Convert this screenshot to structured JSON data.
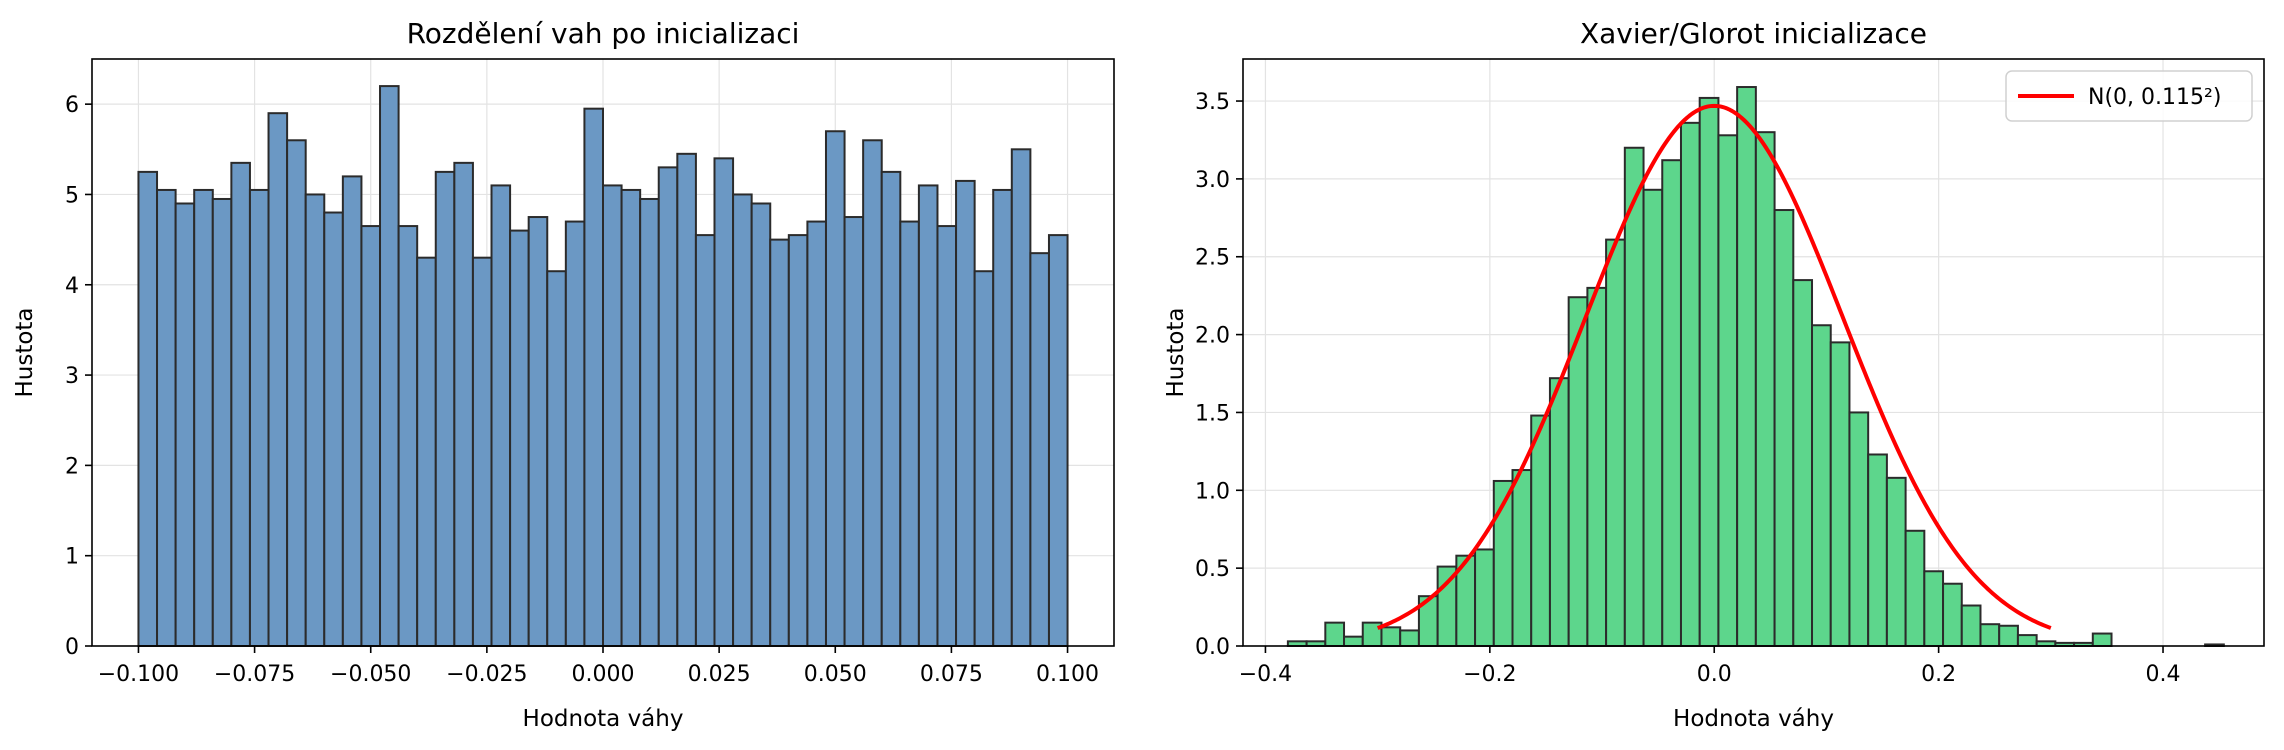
{
  "chart_data": [
    {
      "type": "bar",
      "title": "Rozdělení vah po inicializaci",
      "xlabel": "Hodnota váhy",
      "ylabel": "Hustota",
      "xlim": [
        -0.11,
        0.11
      ],
      "ylim": [
        0,
        6.5
      ],
      "grid": true,
      "bar_color": "#6b98c4",
      "edge_color": "#2b2b2b",
      "bin_range": [
        -0.1,
        0.1
      ],
      "values": [
        5.25,
        5.05,
        4.9,
        5.05,
        4.95,
        5.35,
        5.05,
        5.9,
        5.6,
        5.0,
        4.8,
        5.2,
        4.65,
        6.2,
        4.65,
        4.3,
        5.25,
        5.35,
        4.3,
        5.1,
        4.6,
        4.75,
        4.15,
        4.7,
        5.95,
        5.1,
        5.05,
        4.95,
        5.3,
        5.45,
        4.55,
        5.4,
        5.0,
        4.9,
        4.5,
        4.55,
        4.7,
        5.7,
        4.75,
        5.6,
        5.25,
        4.7,
        5.1,
        4.65,
        5.15,
        4.15,
        5.05,
        5.5,
        4.35,
        4.55
      ],
      "xticks": [
        "−0.100",
        "−0.075",
        "−0.050",
        "−0.025",
        "0.000",
        "0.025",
        "0.050",
        "0.075",
        "0.100"
      ],
      "xtick_values": [
        -0.1,
        -0.075,
        -0.05,
        -0.025,
        0.0,
        0.025,
        0.05,
        0.075,
        0.1
      ],
      "yticks": [
        "0",
        "1",
        "2",
        "3",
        "4",
        "5",
        "6"
      ],
      "ytick_values": [
        0,
        1,
        2,
        3,
        4,
        5,
        6
      ]
    },
    {
      "type": "bar",
      "title": "Xavier/Glorot inicializace",
      "xlabel": "Hodnota váhy",
      "ylabel": "Hustota",
      "xlim": [
        -0.42,
        0.49
      ],
      "ylim": [
        0,
        3.77
      ],
      "grid": true,
      "bar_color": "#5dd68c",
      "edge_color": "#2b2b2b",
      "bin_range": [
        -0.38,
        0.4542
      ],
      "values": [
        0.03,
        0.03,
        0.15,
        0.06,
        0.15,
        0.12,
        0.1,
        0.32,
        0.51,
        0.58,
        0.62,
        1.06,
        1.13,
        1.48,
        1.72,
        2.24,
        2.3,
        2.61,
        3.2,
        2.93,
        3.12,
        3.36,
        3.52,
        3.28,
        3.59,
        3.3,
        2.8,
        2.35,
        2.06,
        1.95,
        1.5,
        1.23,
        1.08,
        0.74,
        0.48,
        0.4,
        0.26,
        0.14,
        0.13,
        0.07,
        0.03,
        0.02,
        0.02,
        0.08,
        0,
        0,
        0,
        0,
        0,
        0.01
      ],
      "curve": {
        "name": "N(0, 0.115²)",
        "color": "#ff0000",
        "mean": 0,
        "std": 0.115,
        "x_range": [
          -0.3,
          0.3
        ]
      },
      "legend_position": "top-right",
      "xticks": [
        "−0.4",
        "−0.2",
        "0.0",
        "0.2",
        "0.4"
      ],
      "xtick_values": [
        -0.4,
        -0.2,
        0.0,
        0.2,
        0.4
      ],
      "yticks": [
        "0.0",
        "0.5",
        "1.0",
        "1.5",
        "2.0",
        "2.5",
        "3.0",
        "3.5"
      ],
      "ytick_values": [
        0,
        0.5,
        1.0,
        1.5,
        2.0,
        2.5,
        3.0,
        3.5
      ]
    }
  ]
}
